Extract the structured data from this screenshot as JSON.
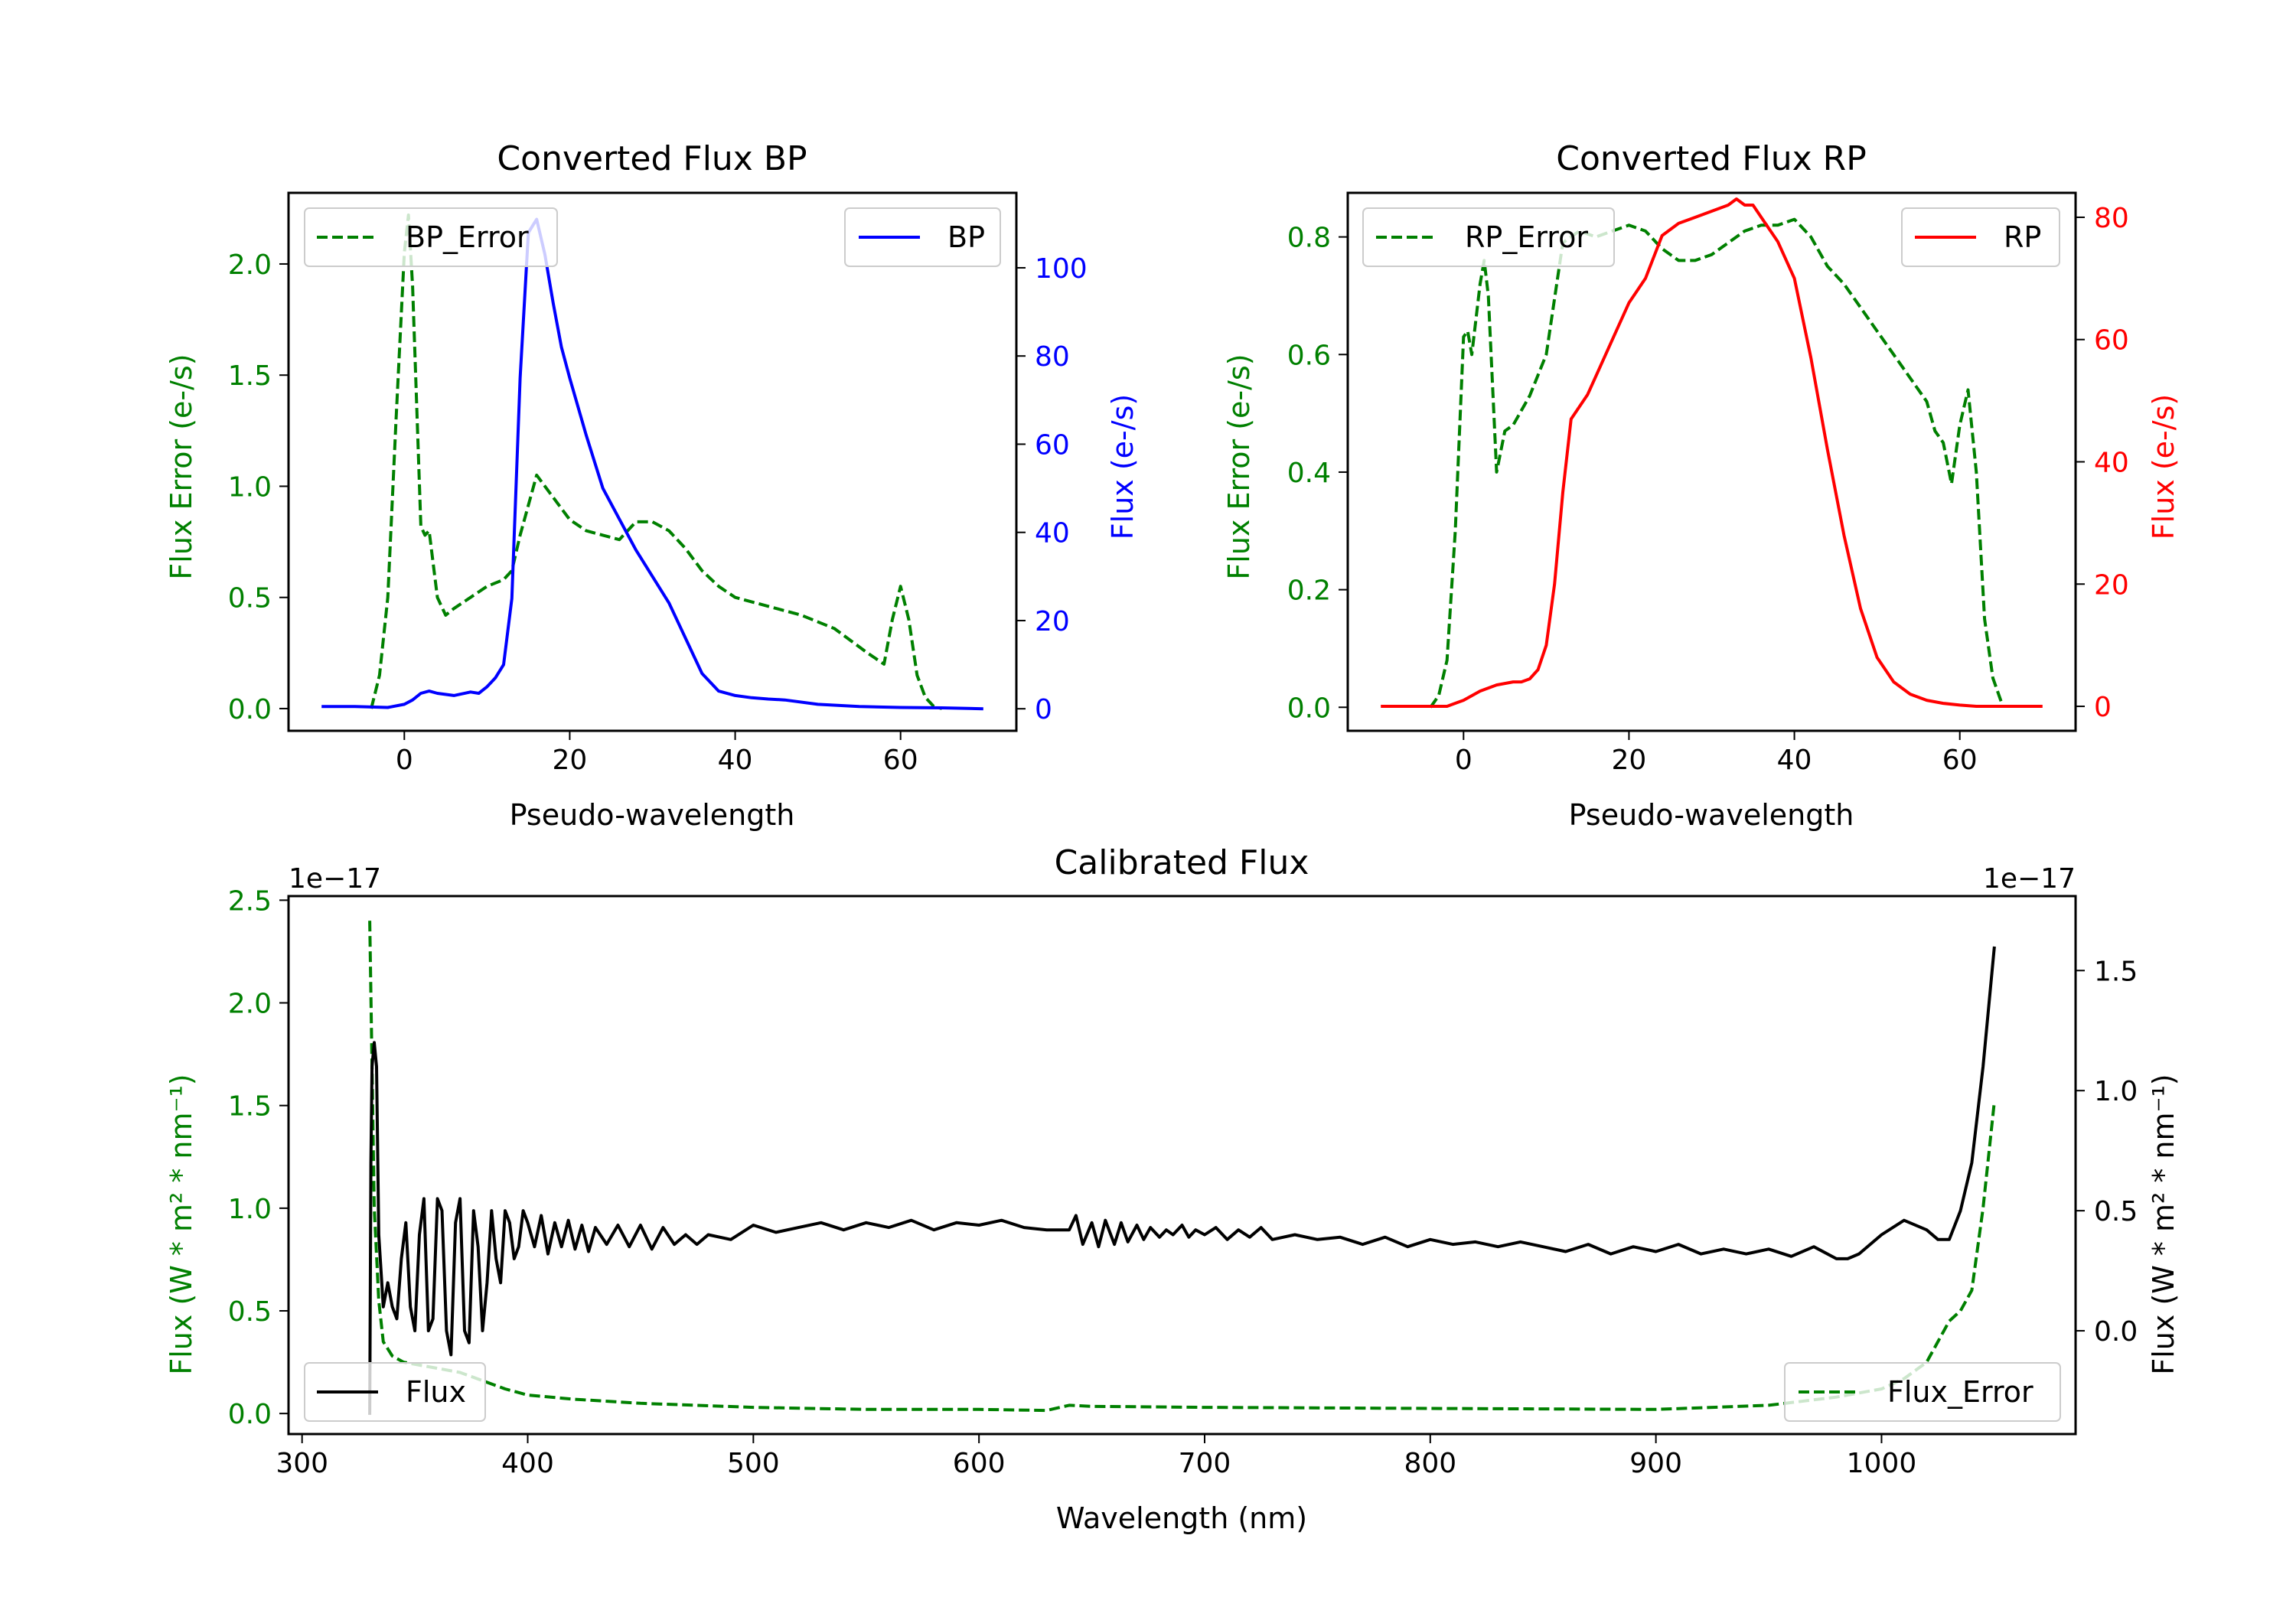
{
  "colors": {
    "error": "#008000",
    "bp": "#0000ff",
    "rp": "#ff0000",
    "flux": "#000000"
  },
  "chart_data": [
    {
      "id": "bp",
      "type": "line",
      "title": "Converted Flux BP",
      "xlabel": "Pseudo-wavelength",
      "ylabel_left": "Flux Error (e-/s)",
      "ylabel_right": "Flux (e-/s)",
      "xlim": [
        -14,
        74
      ],
      "ylim_left": [
        -0.1,
        2.32
      ],
      "ylim_right": [
        -5,
        117
      ],
      "xticks": [
        "0",
        "20",
        "40",
        "60"
      ],
      "xtick_values": [
        0,
        20,
        40,
        60
      ],
      "yticks_left": [
        "0.0",
        "0.5",
        "1.0",
        "1.5",
        "2.0"
      ],
      "ytick_values_left": [
        0,
        0.5,
        1.0,
        1.5,
        2.0
      ],
      "yticks_right": [
        "0",
        "20",
        "40",
        "60",
        "80",
        "100"
      ],
      "ytick_values_right": [
        0,
        20,
        40,
        60,
        80,
        100
      ],
      "legend": {
        "left": "BP_Error",
        "right": "BP"
      },
      "series": [
        {
          "name": "BP_Error",
          "axis": "left",
          "style": "dashed",
          "color": "#008000",
          "x": [
            -4,
            -3,
            -2,
            -1,
            0,
            0.5,
            1,
            2,
            2.5,
            3,
            4,
            5,
            6,
            8,
            10,
            12,
            13,
            14,
            16,
            18,
            20,
            22,
            24,
            26,
            28,
            30,
            32,
            34,
            36,
            38,
            40,
            44,
            48,
            52,
            56,
            58,
            59,
            60,
            61,
            62,
            63,
            64,
            65
          ],
          "y": [
            0.0,
            0.15,
            0.5,
            1.3,
            2.05,
            2.22,
            1.9,
            0.82,
            0.78,
            0.8,
            0.5,
            0.42,
            0.45,
            0.5,
            0.55,
            0.58,
            0.62,
            0.78,
            1.05,
            0.95,
            0.85,
            0.8,
            0.78,
            0.76,
            0.84,
            0.84,
            0.8,
            0.72,
            0.62,
            0.55,
            0.5,
            0.46,
            0.42,
            0.36,
            0.25,
            0.2,
            0.4,
            0.55,
            0.4,
            0.15,
            0.05,
            0.01,
            0.0
          ]
        },
        {
          "name": "BP",
          "axis": "right",
          "style": "solid",
          "color": "#0000ff",
          "x": [
            -10,
            -6,
            -2,
            0,
            1,
            2,
            3,
            4,
            6,
            8,
            9,
            10,
            11,
            12,
            13,
            14,
            15,
            16,
            17,
            18,
            19,
            20,
            22,
            24,
            26,
            28,
            30,
            32,
            34,
            36,
            38,
            40,
            42,
            44,
            46,
            50,
            55,
            60,
            65,
            70
          ],
          "y": [
            0.5,
            0.5,
            0.3,
            1,
            2,
            3.5,
            4,
            3.5,
            3,
            3.8,
            3.5,
            5,
            7,
            10,
            25,
            75,
            108,
            111,
            103,
            92,
            82,
            75,
            62,
            50,
            43,
            36,
            30,
            24,
            16,
            8,
            4,
            3,
            2.5,
            2.2,
            2,
            1,
            0.5,
            0.3,
            0.2,
            0
          ]
        }
      ]
    },
    {
      "id": "rp",
      "type": "line",
      "title": "Converted Flux RP",
      "xlabel": "Pseudo-wavelength",
      "ylabel_left": "Flux Error (e-/s)",
      "ylabel_right": "Flux (e-/s)",
      "xlim": [
        -14,
        74
      ],
      "ylim_left": [
        -0.04,
        0.875
      ],
      "ylim_right": [
        -4,
        84
      ],
      "xticks": [
        "0",
        "20",
        "40",
        "60"
      ],
      "xtick_values": [
        0,
        20,
        40,
        60
      ],
      "yticks_left": [
        "0.0",
        "0.2",
        "0.4",
        "0.6",
        "0.8"
      ],
      "ytick_values_left": [
        0,
        0.2,
        0.4,
        0.6,
        0.8
      ],
      "yticks_right": [
        "0",
        "20",
        "40",
        "60",
        "80"
      ],
      "ytick_values_right": [
        0,
        20,
        40,
        60,
        80
      ],
      "legend": {
        "left": "RP_Error",
        "right": "RP"
      },
      "series": [
        {
          "name": "RP_Error",
          "axis": "left",
          "style": "dashed",
          "color": "#008000",
          "x": [
            -4,
            -3,
            -2,
            -1,
            0,
            0.5,
            1,
            2,
            2.5,
            3,
            3.5,
            4,
            5,
            6,
            8,
            10,
            12,
            14,
            16,
            18,
            20,
            22,
            24,
            26,
            28,
            30,
            32,
            34,
            36,
            38,
            40,
            42,
            44,
            46,
            48,
            50,
            52,
            54,
            56,
            57,
            58,
            59,
            60,
            61,
            62,
            63,
            64,
            65
          ],
          "y": [
            0.0,
            0.02,
            0.08,
            0.3,
            0.63,
            0.64,
            0.6,
            0.72,
            0.76,
            0.7,
            0.55,
            0.4,
            0.47,
            0.48,
            0.53,
            0.6,
            0.79,
            0.81,
            0.8,
            0.81,
            0.82,
            0.81,
            0.78,
            0.76,
            0.76,
            0.77,
            0.79,
            0.81,
            0.82,
            0.82,
            0.83,
            0.8,
            0.75,
            0.72,
            0.68,
            0.64,
            0.6,
            0.56,
            0.52,
            0.47,
            0.45,
            0.38,
            0.48,
            0.54,
            0.4,
            0.15,
            0.05,
            0.01
          ]
        },
        {
          "name": "RP",
          "axis": "right",
          "style": "solid",
          "color": "#ff0000",
          "x": [
            -10,
            -6,
            -2,
            0,
            2,
            4,
            6,
            7,
            8,
            9,
            10,
            11,
            12,
            13,
            14,
            15,
            16,
            18,
            20,
            22,
            24,
            26,
            28,
            30,
            32,
            33,
            34,
            35,
            36,
            38,
            40,
            42,
            44,
            46,
            48,
            50,
            52,
            54,
            56,
            58,
            60,
            62,
            65,
            70
          ],
          "y": [
            0,
            0,
            0,
            1,
            2.5,
            3.5,
            4,
            4,
            4.5,
            6,
            10,
            20,
            35,
            47,
            49,
            51,
            54,
            60,
            66,
            70,
            77,
            79,
            80,
            81,
            82,
            83,
            82,
            82,
            80,
            76,
            70,
            57,
            42,
            28,
            16,
            8,
            4,
            2,
            1,
            0.5,
            0.2,
            0,
            0,
            0
          ]
        }
      ]
    },
    {
      "id": "calibrated",
      "type": "line",
      "title": "Calibrated Flux",
      "xlabel": "Wavelength (nm)",
      "ylabel_left": "Flux (W * m² * nm⁻¹)",
      "ylabel_right": "Flux (W * m² * nm⁻¹)",
      "offset_left": "1e−17",
      "offset_right": "1e−17",
      "xlim": [
        294,
        1086
      ],
      "ylim_left": [
        -0.1,
        2.52
      ],
      "ylim_right": [
        -0.43,
        1.81
      ],
      "xticks": [
        "300",
        "400",
        "500",
        "600",
        "700",
        "800",
        "900",
        "1000"
      ],
      "xtick_values": [
        300,
        400,
        500,
        600,
        700,
        800,
        900,
        1000
      ],
      "yticks_left": [
        "0.0",
        "0.5",
        "1.0",
        "1.5",
        "2.0",
        "2.5"
      ],
      "ytick_values_left": [
        0,
        0.5,
        1.0,
        1.5,
        2.0,
        2.5
      ],
      "yticks_right": [
        "0.0",
        "0.5",
        "1.0",
        "1.5"
      ],
      "ytick_values_right": [
        0,
        0.5,
        1.0,
        1.5
      ],
      "legend": {
        "left": "Flux",
        "right": "Flux_Error"
      },
      "series": [
        {
          "name": "Flux_Error",
          "axis": "left",
          "style": "dashed",
          "color": "#008000",
          "x": [
            330,
            332,
            334,
            336,
            340,
            345,
            350,
            360,
            370,
            380,
            390,
            400,
            420,
            450,
            500,
            550,
            600,
            630,
            640,
            650,
            700,
            800,
            900,
            950,
            980,
            1000,
            1010,
            1020,
            1030,
            1035,
            1040,
            1045,
            1050
          ],
          "y": [
            2.4,
            1.0,
            0.55,
            0.35,
            0.28,
            0.25,
            0.24,
            0.22,
            0.2,
            0.16,
            0.12,
            0.09,
            0.07,
            0.05,
            0.03,
            0.02,
            0.02,
            0.015,
            0.04,
            0.035,
            0.03,
            0.025,
            0.02,
            0.04,
            0.08,
            0.12,
            0.17,
            0.25,
            0.45,
            0.5,
            0.6,
            1.0,
            1.52
          ]
        },
        {
          "name": "Flux",
          "axis": "right",
          "style": "solid",
          "color": "#000000",
          "x": [
            330,
            330.5,
            331,
            332,
            333,
            334,
            336,
            338,
            340,
            342,
            344,
            346,
            348,
            350,
            352,
            354,
            356,
            358,
            360,
            362,
            364,
            366,
            368,
            370,
            372,
            374,
            376,
            378,
            380,
            382,
            384,
            386,
            388,
            390,
            392,
            394,
            396,
            398,
            400,
            403,
            406,
            409,
            412,
            415,
            418,
            421,
            424,
            427,
            430,
            435,
            440,
            445,
            450,
            455,
            460,
            465,
            470,
            475,
            480,
            490,
            500,
            510,
            520,
            530,
            540,
            550,
            560,
            570,
            580,
            590,
            600,
            610,
            620,
            630,
            640,
            643,
            646,
            650,
            653,
            656,
            660,
            663,
            666,
            670,
            673,
            676,
            680,
            683,
            686,
            690,
            693,
            696,
            700,
            705,
            710,
            715,
            720,
            725,
            730,
            740,
            750,
            760,
            770,
            780,
            790,
            800,
            810,
            820,
            830,
            840,
            850,
            860,
            870,
            880,
            890,
            900,
            910,
            920,
            930,
            940,
            950,
            960,
            970,
            980,
            985,
            990,
            1000,
            1010,
            1020,
            1025,
            1030,
            1035,
            1040,
            1045,
            1050
          ],
          "y": [
            -0.35,
            0.7,
            1.1,
            1.2,
            1.1,
            0.4,
            0.1,
            0.2,
            0.1,
            0.05,
            0.3,
            0.45,
            0.1,
            0.0,
            0.4,
            0.55,
            0.0,
            0.05,
            0.55,
            0.5,
            0.0,
            -0.1,
            0.45,
            0.55,
            0.0,
            -0.05,
            0.5,
            0.35,
            0.0,
            0.2,
            0.5,
            0.3,
            0.2,
            0.5,
            0.45,
            0.3,
            0.35,
            0.5,
            0.45,
            0.35,
            0.48,
            0.32,
            0.45,
            0.35,
            0.46,
            0.34,
            0.44,
            0.33,
            0.43,
            0.36,
            0.44,
            0.35,
            0.44,
            0.34,
            0.43,
            0.36,
            0.4,
            0.36,
            0.4,
            0.38,
            0.44,
            0.41,
            0.43,
            0.45,
            0.42,
            0.45,
            0.43,
            0.46,
            0.42,
            0.45,
            0.44,
            0.46,
            0.43,
            0.42,
            0.42,
            0.48,
            0.36,
            0.45,
            0.35,
            0.46,
            0.36,
            0.45,
            0.37,
            0.44,
            0.38,
            0.43,
            0.39,
            0.42,
            0.4,
            0.44,
            0.39,
            0.42,
            0.4,
            0.43,
            0.38,
            0.42,
            0.39,
            0.43,
            0.38,
            0.4,
            0.38,
            0.39,
            0.36,
            0.39,
            0.35,
            0.38,
            0.36,
            0.37,
            0.35,
            0.37,
            0.35,
            0.33,
            0.36,
            0.32,
            0.35,
            0.33,
            0.36,
            0.32,
            0.34,
            0.32,
            0.34,
            0.31,
            0.35,
            0.3,
            0.3,
            0.32,
            0.4,
            0.46,
            0.42,
            0.38,
            0.38,
            0.5,
            0.7,
            1.1,
            1.6
          ]
        }
      ]
    }
  ]
}
